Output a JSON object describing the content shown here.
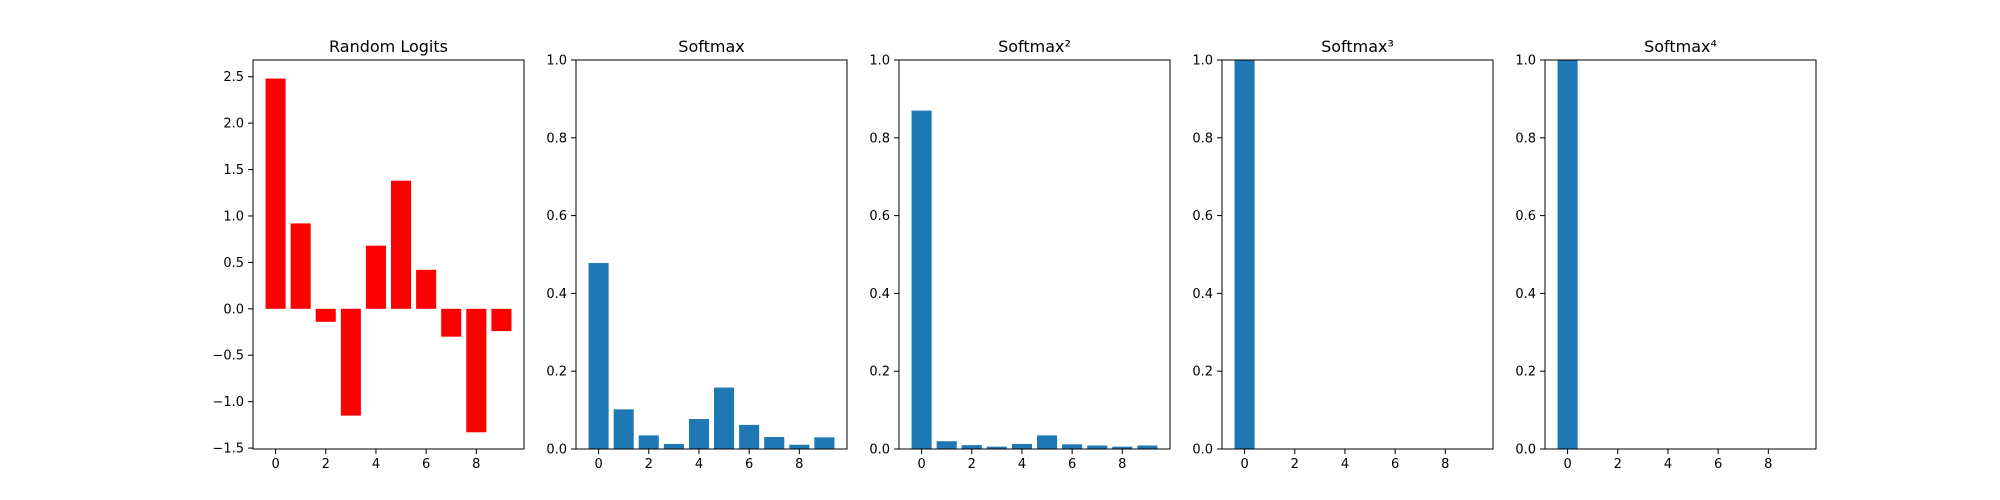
{
  "figure": {
    "background": "#ffffff"
  },
  "chart_data": [
    {
      "type": "bar",
      "title": "Random Logits",
      "xlabel": "",
      "ylabel": "",
      "x": [
        0,
        1,
        2,
        3,
        4,
        5,
        6,
        7,
        8,
        9
      ],
      "values": [
        2.48,
        0.92,
        -0.14,
        -1.15,
        0.68,
        1.38,
        0.42,
        -0.3,
        -1.33,
        -0.24
      ],
      "color": "#ff0000",
      "xlim": [
        -0.9,
        9.9
      ],
      "ylim": [
        -1.51,
        2.68
      ],
      "xticks": [
        0,
        2,
        4,
        6,
        8
      ],
      "yticks": [
        -1.5,
        -1.0,
        -0.5,
        0.0,
        0.5,
        1.0,
        1.5,
        2.0,
        2.5
      ],
      "ytick_labels": [
        "−1.5",
        "−1.0",
        "−0.5",
        "0.0",
        "0.5",
        "1.0",
        "1.5",
        "2.0",
        "2.5"
      ],
      "grid": false
    },
    {
      "type": "bar",
      "title": "Softmax",
      "xlabel": "",
      "ylabel": "",
      "x": [
        0,
        1,
        2,
        3,
        4,
        5,
        6,
        7,
        8,
        9
      ],
      "values": [
        0.478,
        0.102,
        0.035,
        0.013,
        0.077,
        0.158,
        0.062,
        0.031,
        0.011,
        0.03
      ],
      "color": "#1f77b4",
      "xlim": [
        -0.9,
        9.9
      ],
      "ylim": [
        0,
        1.0
      ],
      "xticks": [
        0,
        2,
        4,
        6,
        8
      ],
      "yticks": [
        0.0,
        0.2,
        0.4,
        0.6,
        0.8,
        1.0
      ],
      "ytick_labels": [
        "0.0",
        "0.2",
        "0.4",
        "0.6",
        "0.8",
        "1.0"
      ],
      "grid": false
    },
    {
      "type": "bar",
      "title": "Softmax²",
      "xlabel": "",
      "ylabel": "",
      "x": [
        0,
        1,
        2,
        3,
        4,
        5,
        6,
        7,
        8,
        9
      ],
      "values": [
        0.87,
        0.02,
        0.01,
        0.006,
        0.013,
        0.035,
        0.012,
        0.009,
        0.006,
        0.009
      ],
      "color": "#1f77b4",
      "xlim": [
        -0.9,
        9.9
      ],
      "ylim": [
        0,
        1.0
      ],
      "xticks": [
        0,
        2,
        4,
        6,
        8
      ],
      "yticks": [
        0.0,
        0.2,
        0.4,
        0.6,
        0.8,
        1.0
      ],
      "ytick_labels": [
        "0.0",
        "0.2",
        "0.4",
        "0.6",
        "0.8",
        "1.0"
      ],
      "grid": false
    },
    {
      "type": "bar",
      "title": "Softmax³",
      "xlabel": "",
      "ylabel": "",
      "x": [
        0,
        1,
        2,
        3,
        4,
        5,
        6,
        7,
        8,
        9
      ],
      "values": [
        1.0,
        0,
        0,
        0,
        0,
        0,
        0,
        0,
        0,
        0
      ],
      "color": "#1f77b4",
      "xlim": [
        -0.9,
        9.9
      ],
      "ylim": [
        0,
        1.0
      ],
      "xticks": [
        0,
        2,
        4,
        6,
        8
      ],
      "yticks": [
        0.0,
        0.2,
        0.4,
        0.6,
        0.8,
        1.0
      ],
      "ytick_labels": [
        "0.0",
        "0.2",
        "0.4",
        "0.6",
        "0.8",
        "1.0"
      ],
      "grid": false
    },
    {
      "type": "bar",
      "title": "Softmax⁴",
      "xlabel": "",
      "ylabel": "",
      "x": [
        0,
        1,
        2,
        3,
        4,
        5,
        6,
        7,
        8,
        9
      ],
      "values": [
        1.0,
        0,
        0,
        0,
        0,
        0,
        0,
        0,
        0,
        0
      ],
      "color": "#1f77b4",
      "xlim": [
        -0.9,
        9.9
      ],
      "ylim": [
        0,
        1.0
      ],
      "xticks": [
        0,
        2,
        4,
        6,
        8
      ],
      "yticks": [
        0.0,
        0.2,
        0.4,
        0.6,
        0.8,
        1.0
      ],
      "ytick_labels": [
        "0.0",
        "0.2",
        "0.4",
        "0.6",
        "0.8",
        "1.0"
      ],
      "grid": false
    }
  ]
}
